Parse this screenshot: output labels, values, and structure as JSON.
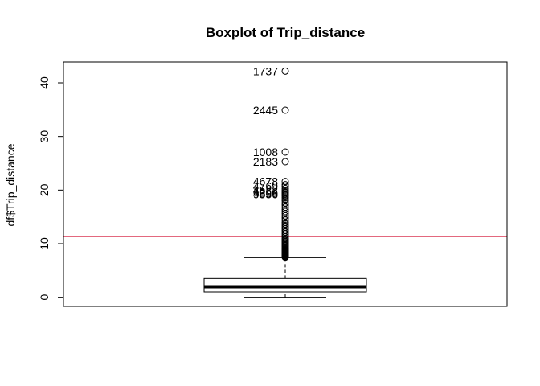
{
  "chart_data": {
    "type": "boxplot",
    "title": "Boxplot of Trip_distance",
    "xlabel": "",
    "ylabel": "df$Trip_distance",
    "ylim": [
      -1.7,
      43.9
    ],
    "yticks": [
      0,
      10,
      20,
      30,
      40
    ],
    "yticklabels": [
      "0",
      "10",
      "20",
      "30",
      "40"
    ],
    "box": {
      "whisker_low": 0.0,
      "q1": 1.0,
      "median": 1.9,
      "q3": 3.5,
      "whisker_high": 7.4
    },
    "outliers": [
      7.5,
      7.6,
      7.7,
      7.8,
      7.9,
      8.0,
      8.1,
      8.2,
      8.3,
      8.4,
      8.5,
      8.6,
      8.7,
      8.8,
      8.9,
      9.0,
      9.2,
      9.4,
      9.6,
      9.8,
      10.0,
      10.2,
      10.4,
      10.6,
      10.8,
      11.0,
      11.3,
      11.6,
      11.9,
      12.2,
      12.5,
      12.8,
      13.1,
      13.4,
      13.7,
      14.0,
      14.4,
      14.8,
      15.2,
      15.6,
      16.0,
      16.4,
      16.8,
      17.2,
      17.6,
      18.0,
      18.3,
      18.6,
      18.9,
      19.1,
      19.3,
      19.5,
      19.7,
      20.0,
      20.3,
      20.7,
      21.0,
      21.6,
      25.3,
      27.1,
      34.9,
      42.2
    ],
    "outlier_labels": [
      {
        "label": "1737",
        "value": 42.2
      },
      {
        "label": "2445",
        "value": 34.9
      },
      {
        "label": "1008",
        "value": 27.1
      },
      {
        "label": "2183",
        "value": 25.3
      },
      {
        "label": "4678",
        "value": 21.6
      },
      {
        "label": "4769",
        "value": 20.7
      },
      {
        "label": "4522",
        "value": 20.0
      },
      {
        "label": "1256",
        "value": 19.7
      },
      {
        "label": "4596",
        "value": 19.4
      },
      {
        "label": "9556",
        "value": 19.2
      }
    ],
    "hline": {
      "value": 11.3,
      "color": "#DF536B"
    },
    "colors": {
      "box": "#000000",
      "points": "#000000",
      "frame": "#000000"
    }
  }
}
